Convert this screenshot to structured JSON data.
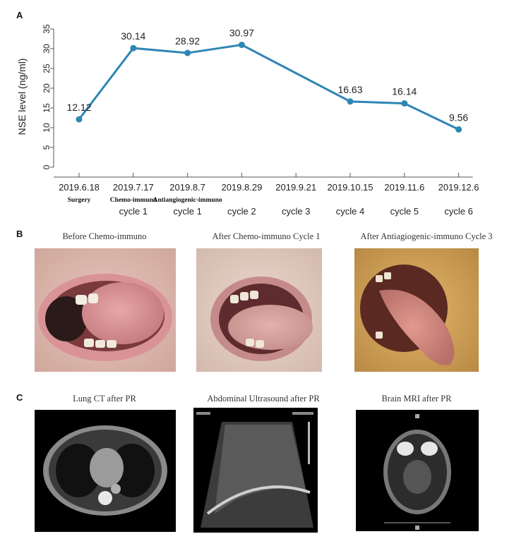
{
  "panels": {
    "a_label": "A",
    "b_label": "B",
    "c_label": "C"
  },
  "chart_data": {
    "type": "line",
    "ylabel": "NSE level (ng/ml)",
    "ylim": [
      0,
      35
    ],
    "yticks": [
      0,
      5,
      10,
      15,
      20,
      25,
      30,
      35
    ],
    "categories": [
      "2019.6.18",
      "2019.7.17",
      "2019.8.7",
      "2019.8.29",
      "2019.9.21",
      "2019.10.15",
      "2019.11.6",
      "2019.12.6"
    ],
    "bold_sublabels": [
      "Surgery",
      "Chemo-immuno",
      "Antiangiogenic-immuno",
      "",
      "",
      "",
      "",
      ""
    ],
    "cycle_labels": [
      "",
      "cycle 1",
      "cycle 1",
      "cycle 2",
      "cycle 3",
      "cycle 4",
      "cycle 5",
      "cycle 6"
    ],
    "points": [
      {
        "category": "2019.6.18",
        "value": 12.12,
        "label": "12.12"
      },
      {
        "category": "2019.7.17",
        "value": 30.14,
        "label": "30.14"
      },
      {
        "category": "2019.8.7",
        "value": 28.92,
        "label": "28.92"
      },
      {
        "category": "2019.8.29",
        "value": 30.97,
        "label": "30.97"
      },
      {
        "category": "2019.10.15",
        "value": 16.63,
        "label": "16.63"
      },
      {
        "category": "2019.11.6",
        "value": 16.14,
        "label": "16.14"
      },
      {
        "category": "2019.12.6",
        "value": 9.56,
        "label": "9.56"
      }
    ],
    "line_color": "#2e86b5",
    "grid": false
  },
  "oral_photos": {
    "captions": [
      "Before Chemo-immuno",
      "After Chemo-immuno Cycle 1",
      "After Antiagiogenic-immuno Cycle 3"
    ]
  },
  "scans": {
    "captions": [
      "Lung CT after PR",
      "Abdominal Ultrasound  after PR",
      "Brain MRI after PR"
    ]
  }
}
